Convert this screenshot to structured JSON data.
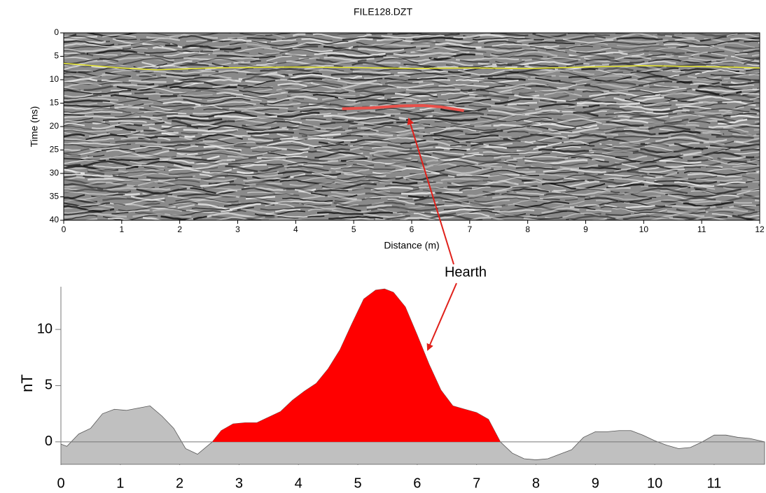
{
  "chart_data": [
    {
      "type": "line",
      "title": "FILE128.DZT",
      "x_label": "Distance (m)",
      "y_label": "Time (ns)",
      "annotation": "Hearth",
      "xlim": [
        0,
        12
      ],
      "xticks": [
        0,
        1,
        2,
        3,
        4,
        5,
        6,
        7,
        8,
        9,
        10,
        11,
        12
      ],
      "ylim": [
        40,
        0
      ],
      "yticks": [
        0,
        5,
        10,
        15,
        20,
        25,
        30,
        35,
        40
      ],
      "series": [
        {
          "color": "#e6e62e",
          "x": [
            0,
            0.5,
            1,
            1.6,
            2.5,
            3,
            4,
            5,
            6,
            7,
            8,
            9,
            10,
            11,
            11.5,
            12
          ],
          "values": [
            6.5,
            7.0,
            7.5,
            7.9,
            7.5,
            7.4,
            7.3,
            7.4,
            7.6,
            7.5,
            7.6,
            7.3,
            7.0,
            7.2,
            7.3,
            7.5
          ]
        },
        {
          "color": "#e8504a",
          "x": [
            4.8,
            5.3,
            5.8,
            6.2,
            6.5,
            6.9
          ],
          "values": [
            16.2,
            16.0,
            15.6,
            15.5,
            15.8,
            16.6
          ]
        }
      ]
    },
    {
      "type": "area",
      "y_label": "nT",
      "xlim": [
        0,
        11.85
      ],
      "xticks": [
        0,
        1,
        2,
        3,
        4,
        5,
        6,
        7,
        8,
        9,
        10,
        11
      ],
      "ylim": [
        -2,
        13.8
      ],
      "yticks": [
        0,
        5,
        10
      ],
      "series": [
        {
          "color": "#c0c0c0",
          "x": [
            0,
            0.1,
            0.3,
            0.5,
            0.7,
            0.9,
            1.1,
            1.3,
            1.5,
            1.7,
            1.9,
            2.1,
            2.3,
            2.55,
            2.7,
            2.9,
            3.1,
            3.3,
            3.5,
            3.7,
            3.9,
            4.1,
            4.3,
            4.5,
            4.7,
            4.9,
            5.1,
            5.3,
            5.45,
            5.6,
            5.8,
            6.0,
            6.2,
            6.4,
            6.6,
            6.8,
            7.0,
            7.2,
            7.4,
            7.6,
            7.8,
            8.0,
            8.2,
            8.4,
            8.6,
            8.8,
            9.0,
            9.2,
            9.4,
            9.6,
            9.8,
            10.0,
            10.2,
            10.4,
            10.6,
            10.8,
            11.0,
            11.2,
            11.4,
            11.6,
            11.85
          ],
          "values": [
            -0.2,
            -0.4,
            0.7,
            1.2,
            2.5,
            2.9,
            2.8,
            3.0,
            3.2,
            2.3,
            1.2,
            -0.6,
            -1.1,
            0,
            1.0,
            1.6,
            1.7,
            1.7,
            2.2,
            2.7,
            3.7,
            4.5,
            5.2,
            6.5,
            8.2,
            10.5,
            12.7,
            13.5,
            13.6,
            13.3,
            12.0,
            9.5,
            6.9,
            4.6,
            3.2,
            2.9,
            2.6,
            2.0,
            0,
            -1.0,
            -1.5,
            -1.6,
            -1.5,
            -1.1,
            -0.7,
            0.4,
            0.9,
            0.9,
            1.0,
            1.0,
            0.6,
            0.1,
            -0.3,
            -0.6,
            -0.5,
            0.0,
            0.6,
            0.6,
            0.4,
            0.3,
            0.0
          ]
        },
        {
          "color": "#ff0000",
          "x": [
            2.55,
            2.7,
            2.9,
            3.1,
            3.3,
            3.5,
            3.7,
            3.9,
            4.1,
            4.3,
            4.5,
            4.7,
            4.9,
            5.1,
            5.3,
            5.45,
            5.6,
            5.8,
            6.0,
            6.2,
            6.4,
            6.6,
            6.8,
            7.0,
            7.2,
            7.4
          ],
          "values": [
            0,
            1.0,
            1.6,
            1.7,
            1.7,
            2.2,
            2.7,
            3.7,
            4.5,
            5.2,
            6.5,
            8.2,
            10.5,
            12.7,
            13.5,
            13.6,
            13.3,
            12.0,
            9.5,
            6.9,
            4.6,
            3.2,
            2.9,
            2.6,
            2.0,
            0
          ]
        }
      ]
    }
  ]
}
